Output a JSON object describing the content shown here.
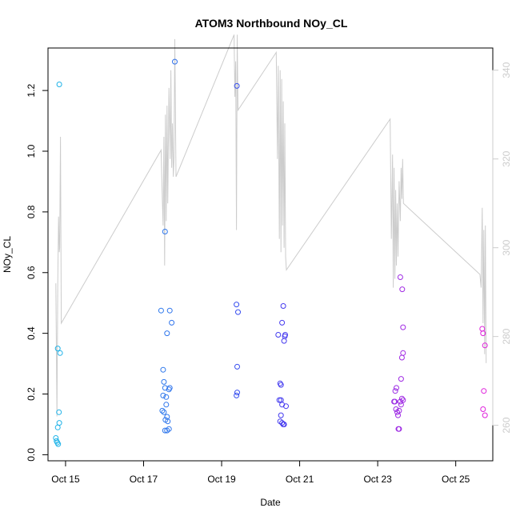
{
  "chart_data": {
    "type": "scatter",
    "title": "ATOM3 Northbound NOy_CL",
    "xlabel": "Date",
    "ylabel": "NOy_CL",
    "x_ticks": [
      "Oct 15",
      "Oct 17",
      "Oct 19",
      "Oct 21",
      "Oct 23",
      "Oct 25"
    ],
    "y_ticks": [
      "0.0",
      "0.2",
      "0.4",
      "0.6",
      "0.8",
      "1.0",
      "1.2"
    ],
    "y2_ticks": [
      "260",
      "280",
      "300",
      "320",
      "340"
    ],
    "xlim": [
      14.55,
      25.95
    ],
    "ylim": [
      -0.02,
      1.34
    ],
    "y2lim": [
      252,
      345
    ],
    "grid": false,
    "colors": {
      "points_start": "#1fb4e8",
      "points_mid": "#3c3cf0",
      "points_end": "#e020dc",
      "secondary_line": "#cccccc"
    },
    "points": [
      [
        14.75,
        0.055
      ],
      [
        14.77,
        0.045
      ],
      [
        14.79,
        0.04
      ],
      [
        14.81,
        0.035
      ],
      [
        14.8,
        0.09
      ],
      [
        14.84,
        0.105
      ],
      [
        14.83,
        0.14
      ],
      [
        14.8,
        0.35
      ],
      [
        14.86,
        0.335
      ],
      [
        14.84,
        1.22
      ],
      [
        17.45,
        0.475
      ],
      [
        17.5,
        0.28
      ],
      [
        17.48,
        0.145
      ],
      [
        17.52,
        0.24
      ],
      [
        17.55,
        0.22
      ],
      [
        17.5,
        0.195
      ],
      [
        17.58,
        0.19
      ],
      [
        17.52,
        0.14
      ],
      [
        17.56,
        0.115
      ],
      [
        17.6,
        0.125
      ],
      [
        17.55,
        0.08
      ],
      [
        17.6,
        0.08
      ],
      [
        17.62,
        0.11
      ],
      [
        17.65,
        0.085
      ],
      [
        17.58,
        0.165
      ],
      [
        17.65,
        0.215
      ],
      [
        17.67,
        0.22
      ],
      [
        17.6,
        0.4
      ],
      [
        17.67,
        0.475
      ],
      [
        17.72,
        0.435
      ],
      [
        17.55,
        0.735
      ],
      [
        17.8,
        1.295
      ],
      [
        19.38,
        0.495
      ],
      [
        19.42,
        0.47
      ],
      [
        19.4,
        0.29
      ],
      [
        19.38,
        0.195
      ],
      [
        19.4,
        0.205
      ],
      [
        19.39,
        1.215
      ],
      [
        20.45,
        0.395
      ],
      [
        20.5,
        0.235
      ],
      [
        20.52,
        0.23
      ],
      [
        20.48,
        0.18
      ],
      [
        20.52,
        0.18
      ],
      [
        20.52,
        0.13
      ],
      [
        20.5,
        0.11
      ],
      [
        20.55,
        0.105
      ],
      [
        20.58,
        0.1
      ],
      [
        20.6,
        0.1
      ],
      [
        20.55,
        0.165
      ],
      [
        20.65,
        0.16
      ],
      [
        20.6,
        0.375
      ],
      [
        20.62,
        0.39
      ],
      [
        20.63,
        0.395
      ],
      [
        20.55,
        0.435
      ],
      [
        20.58,
        0.49
      ],
      [
        23.42,
        0.175
      ],
      [
        23.45,
        0.21
      ],
      [
        23.48,
        0.22
      ],
      [
        23.44,
        0.175
      ],
      [
        23.47,
        0.15
      ],
      [
        23.5,
        0.14
      ],
      [
        23.52,
        0.13
      ],
      [
        23.55,
        0.145
      ],
      [
        23.53,
        0.085
      ],
      [
        23.55,
        0.085
      ],
      [
        23.58,
        0.175
      ],
      [
        23.6,
        0.165
      ],
      [
        23.62,
        0.185
      ],
      [
        23.65,
        0.18
      ],
      [
        23.6,
        0.25
      ],
      [
        23.62,
        0.32
      ],
      [
        23.65,
        0.335
      ],
      [
        23.65,
        0.42
      ],
      [
        23.58,
        0.585
      ],
      [
        23.63,
        0.545
      ],
      [
        25.68,
        0.415
      ],
      [
        25.7,
        0.4
      ],
      [
        25.75,
        0.36
      ],
      [
        25.72,
        0.21
      ],
      [
        25.7,
        0.15
      ],
      [
        25.75,
        0.13
      ]
    ],
    "secondary_line": [
      [
        14.75,
        292
      ],
      [
        14.78,
        262
      ],
      [
        14.8,
        292
      ],
      [
        14.82,
        307
      ],
      [
        14.84,
        299
      ],
      [
        14.85,
        300
      ],
      [
        14.87,
        325
      ],
      [
        14.89,
        283
      ],
      [
        17.45,
        322
      ],
      [
        17.48,
        311
      ],
      [
        17.5,
        305
      ],
      [
        17.52,
        325
      ],
      [
        17.54,
        296
      ],
      [
        17.56,
        330
      ],
      [
        17.58,
        306
      ],
      [
        17.6,
        332
      ],
      [
        17.62,
        310
      ],
      [
        17.65,
        336
      ],
      [
        17.68,
        320
      ],
      [
        17.7,
        340
      ],
      [
        17.72,
        318
      ],
      [
        17.74,
        328
      ],
      [
        17.76,
        316
      ],
      [
        17.78,
        320
      ],
      [
        17.8,
        347
      ],
      [
        17.83,
        316
      ],
      [
        19.32,
        348
      ],
      [
        19.34,
        334
      ],
      [
        19.36,
        342
      ],
      [
        19.38,
        304
      ],
      [
        19.4,
        348
      ],
      [
        19.42,
        331
      ],
      [
        20.4,
        344
      ],
      [
        20.43,
        320
      ],
      [
        20.45,
        341
      ],
      [
        20.48,
        302
      ],
      [
        20.5,
        340
      ],
      [
        20.52,
        299
      ],
      [
        20.54,
        338
      ],
      [
        20.56,
        305
      ],
      [
        20.58,
        333
      ],
      [
        20.6,
        300
      ],
      [
        20.62,
        328
      ],
      [
        20.64,
        298
      ],
      [
        20.66,
        295
      ],
      [
        23.32,
        329
      ],
      [
        23.35,
        302
      ],
      [
        23.38,
        321
      ],
      [
        23.4,
        291
      ],
      [
        23.42,
        318
      ],
      [
        23.44,
        293
      ],
      [
        23.46,
        313
      ],
      [
        23.48,
        296
      ],
      [
        23.5,
        310
      ],
      [
        23.52,
        298
      ],
      [
        23.55,
        315
      ],
      [
        23.58,
        306
      ],
      [
        23.6,
        318
      ],
      [
        23.62,
        311
      ],
      [
        23.64,
        320
      ],
      [
        23.66,
        310
      ],
      [
        25.62,
        294
      ],
      [
        25.65,
        291
      ],
      [
        25.68,
        309
      ],
      [
        25.7,
        283
      ],
      [
        25.72,
        304
      ],
      [
        25.74,
        276
      ],
      [
        25.76,
        305
      ],
      [
        25.78,
        274
      ]
    ]
  }
}
